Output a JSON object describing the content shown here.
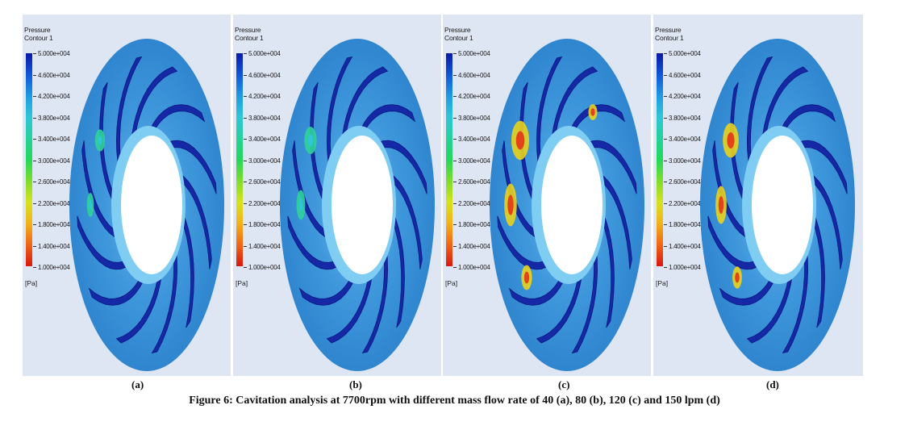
{
  "figure": {
    "caption": "Figure 6: Cavitation analysis at 7700rpm with different mass flow rate of 40 (a), 80 (b), 120 (c) and 150 lpm (d)"
  },
  "legend": {
    "title_line1": "Pressure",
    "title_line2": "Contour 1",
    "ticks": [
      "5.000e+004",
      "4.600e+004",
      "4.200e+004",
      "3.800e+004",
      "3.400e+004",
      "3.000e+004",
      "2.600e+004",
      "2.200e+004",
      "1.800e+004",
      "1.400e+004",
      "1.000e+004"
    ],
    "unit": "[Pa]"
  },
  "panels": [
    {
      "label": "(a)",
      "flow_rate_lpm": 40
    },
    {
      "label": "(b)",
      "flow_rate_lpm": 80
    },
    {
      "label": "(c)",
      "flow_rate_lpm": 120
    },
    {
      "label": "(d)",
      "flow_rate_lpm": 150
    }
  ],
  "colors": {
    "disk": "#3a8fd6",
    "blade_dark": "#1326a0",
    "panel_bg": "#dfe6f3"
  }
}
